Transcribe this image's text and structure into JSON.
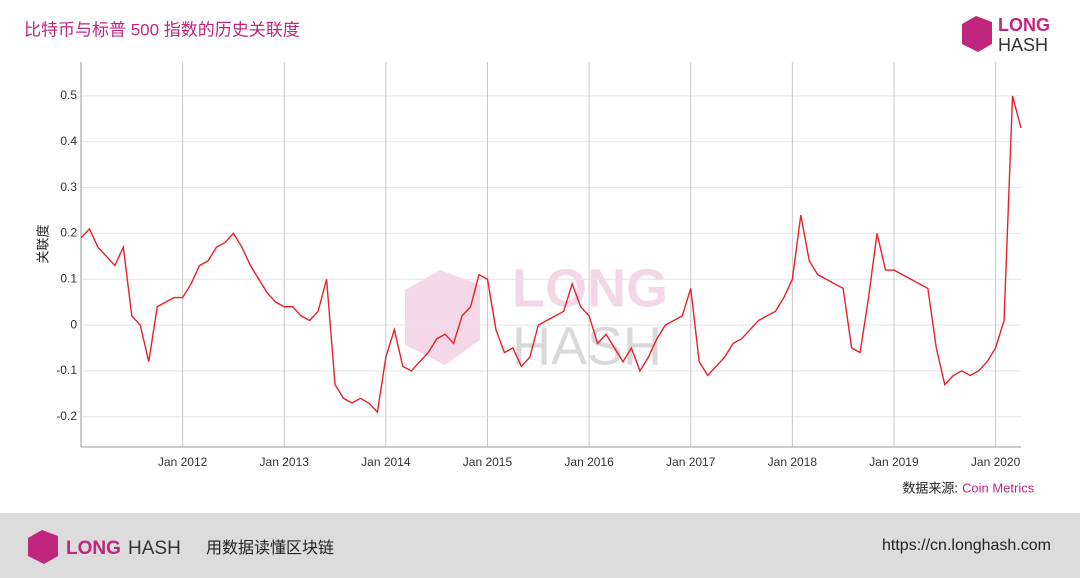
{
  "chart_data": {
    "type": "line",
    "title": "比特币与标普 500 指数的历史关联度",
    "y_label": "关联度",
    "source_label": "数据来源:",
    "source": "Coin Metrics",
    "x": [
      "2011-01",
      "2011-02",
      "2011-03",
      "2011-04",
      "2011-05",
      "2011-06",
      "2011-07",
      "2011-08",
      "2011-09",
      "2011-10",
      "2011-11",
      "2011-12",
      "2012-01",
      "2012-02",
      "2012-03",
      "2012-04",
      "2012-05",
      "2012-06",
      "2012-07",
      "2012-08",
      "2012-09",
      "2012-10",
      "2012-11",
      "2012-12",
      "2013-01",
      "2013-02",
      "2013-03",
      "2013-04",
      "2013-05",
      "2013-06",
      "2013-07",
      "2013-08",
      "2013-09",
      "2013-10",
      "2013-11",
      "2013-12",
      "2014-01",
      "2014-02",
      "2014-03",
      "2014-04",
      "2014-05",
      "2014-06",
      "2014-07",
      "2014-08",
      "2014-09",
      "2014-10",
      "2014-11",
      "2014-12",
      "2015-01",
      "2015-02",
      "2015-03",
      "2015-04",
      "2015-05",
      "2015-06",
      "2015-07",
      "2015-08",
      "2015-09",
      "2015-10",
      "2015-11",
      "2015-12",
      "2016-01",
      "2016-02",
      "2016-03",
      "2016-04",
      "2016-05",
      "2016-06",
      "2016-07",
      "2016-08",
      "2016-09",
      "2016-10",
      "2016-11",
      "2016-12",
      "2017-01",
      "2017-02",
      "2017-03",
      "2017-04",
      "2017-05",
      "2017-06",
      "2017-07",
      "2017-08",
      "2017-09",
      "2017-10",
      "2017-11",
      "2017-12",
      "2018-01",
      "2018-02",
      "2018-03",
      "2018-04",
      "2018-05",
      "2018-06",
      "2018-07",
      "2018-08",
      "2018-09",
      "2018-10",
      "2018-11",
      "2018-12",
      "2019-01",
      "2019-02",
      "2019-03",
      "2019-04",
      "2019-05",
      "2019-06",
      "2019-07",
      "2019-08",
      "2019-09",
      "2019-10",
      "2019-11",
      "2019-12",
      "2020-01",
      "2020-02",
      "2020-03",
      "2020-04"
    ],
    "series": [
      {
        "name": "关联度",
        "color": "#e8202a",
        "values": [
          0.19,
          0.21,
          0.17,
          0.15,
          0.13,
          0.17,
          0.02,
          0.0,
          -0.08,
          0.04,
          0.05,
          0.06,
          0.06,
          0.09,
          0.13,
          0.14,
          0.17,
          0.18,
          0.2,
          0.17,
          0.13,
          0.1,
          0.07,
          0.05,
          0.04,
          0.04,
          0.02,
          0.01,
          0.03,
          0.1,
          -0.13,
          -0.16,
          -0.17,
          -0.16,
          -0.17,
          -0.19,
          -0.07,
          -0.01,
          -0.09,
          -0.1,
          -0.08,
          -0.06,
          -0.03,
          -0.02,
          -0.04,
          0.02,
          0.04,
          0.11,
          0.1,
          -0.01,
          -0.06,
          -0.05,
          -0.09,
          -0.07,
          0.0,
          0.01,
          0.02,
          0.03,
          0.09,
          0.04,
          0.02,
          -0.04,
          -0.02,
          -0.05,
          -0.08,
          -0.05,
          -0.1,
          -0.07,
          -0.03,
          0.0,
          0.01,
          0.02,
          0.08,
          -0.08,
          -0.11,
          -0.09,
          -0.07,
          -0.04,
          -0.03,
          -0.01,
          0.01,
          0.02,
          0.03,
          0.06,
          0.1,
          0.24,
          0.14,
          0.11,
          0.1,
          0.09,
          0.08,
          -0.05,
          -0.06,
          0.06,
          0.2,
          0.12,
          0.12,
          0.11,
          0.1,
          0.09,
          0.08,
          -0.05,
          -0.13,
          -0.11,
          -0.1,
          -0.11,
          -0.1,
          -0.08,
          -0.05,
          0.01,
          0.5,
          0.43
        ]
      }
    ],
    "xlim": [
      "2011-01",
      "2020-04"
    ],
    "xticks": [
      {
        "value": "2012-01",
        "label": "Jan 2012"
      },
      {
        "value": "2013-01",
        "label": "Jan 2013"
      },
      {
        "value": "2014-01",
        "label": "Jan 2014"
      },
      {
        "value": "2015-01",
        "label": "Jan 2015"
      },
      {
        "value": "2016-01",
        "label": "Jan 2016"
      },
      {
        "value": "2017-01",
        "label": "Jan 2017"
      },
      {
        "value": "2018-01",
        "label": "Jan 2018"
      },
      {
        "value": "2019-01",
        "label": "Jan 2019"
      },
      {
        "value": "2020-01",
        "label": "Jan 2020"
      }
    ],
    "ylim": [
      -0.266,
      0.574
    ],
    "yticks": [
      -0.2,
      -0.1,
      0,
      0.1,
      0.2,
      0.3,
      0.4,
      0.5
    ],
    "grid": true
  },
  "branding": {
    "logo_top": "LONG",
    "logo_bottom": "HASH",
    "footer_brand_1": "LONG",
    "footer_brand_2": "HASH",
    "footer_slogan": "用数据读懂区块链",
    "footer_url": "https://cn.longhash.com"
  }
}
